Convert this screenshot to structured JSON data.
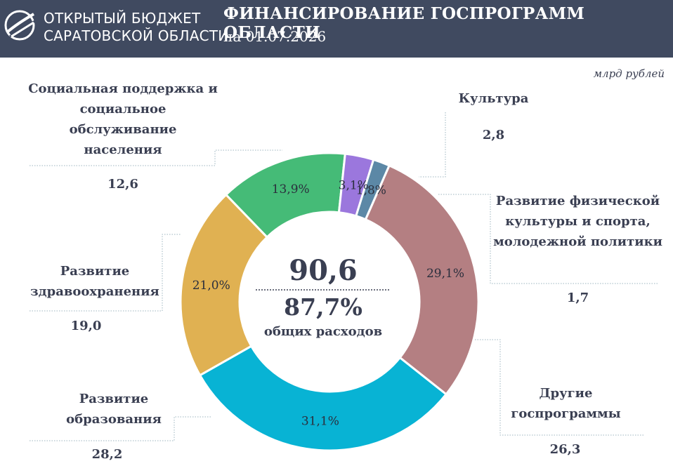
{
  "header": {
    "brand_line1": "ОТКРЫТЫЙ БЮДЖЕТ",
    "brand_line2": "САРАТОВСКОЙ ОБЛАСТИ",
    "title": "ФИНАНСИРОВАНИЕ ГОСПРОГРАММ ОБЛАСТИ",
    "subtitle": "на 01.07.2026",
    "logo_icon": "globe-swoosh-icon",
    "background": "#404a60"
  },
  "unit": "млрд рублей",
  "center": {
    "total": "90,6",
    "share": "87,7%",
    "caption": "общих расходов"
  },
  "chart_data": {
    "type": "pie",
    "donut": true,
    "title": "ФИНАНСИРОВАНИЕ ГОСПРОГРАММ ОБЛАСТИ",
    "unit": "млрд рублей",
    "segments": [
      {
        "label": "Социальная поддержка и социальное обслуживание населения",
        "value": 12.6,
        "value_text": "12,6",
        "percent": 13.9,
        "percent_text": "13,9%",
        "color": "#45bb77"
      },
      {
        "label": "Культура",
        "value": 2.8,
        "value_text": "2,8",
        "percent": 3.1,
        "percent_text": "3,1%",
        "color": "#9b77dd"
      },
      {
        "label": "Развитие физической культуры и спорта, молодежной политики",
        "value": 1.7,
        "value_text": "1,7",
        "percent": 1.8,
        "percent_text": "1,8%",
        "color": "#5c88a6"
      },
      {
        "label": "Другие госпрограммы",
        "value": 26.3,
        "value_text": "26,3",
        "percent": 29.1,
        "percent_text": "29,1%",
        "color": "#b47f82"
      },
      {
        "label": "Развитие образования",
        "value": 28.2,
        "value_text": "28,2",
        "percent": 31.1,
        "percent_text": "31,1%",
        "color": "#08b3d4"
      },
      {
        "label": "Развитие здравоохранения",
        "value": 19.0,
        "value_text": "19,0",
        "percent": 21.0,
        "percent_text": "21,0%",
        "color": "#e0b152"
      }
    ],
    "total": 90.6,
    "total_text": "90,6",
    "share_of_expenses_text": "87,7%"
  },
  "labels": {
    "social": {
      "text": "Социальная поддержка и социальное обслуживание населения",
      "value": "12,6"
    },
    "culture": {
      "text": "Культура",
      "value": "2,8"
    },
    "sport": {
      "text": "Развитие физической культуры и спорта, молодежной политики",
      "value": "1,7"
    },
    "other": {
      "text": "Другие госпрограммы",
      "value": "26,3"
    },
    "education": {
      "text": "Развитие образования",
      "value": "28,2"
    },
    "health": {
      "text": "Развитие здравоохранения",
      "value": "19,0"
    }
  }
}
